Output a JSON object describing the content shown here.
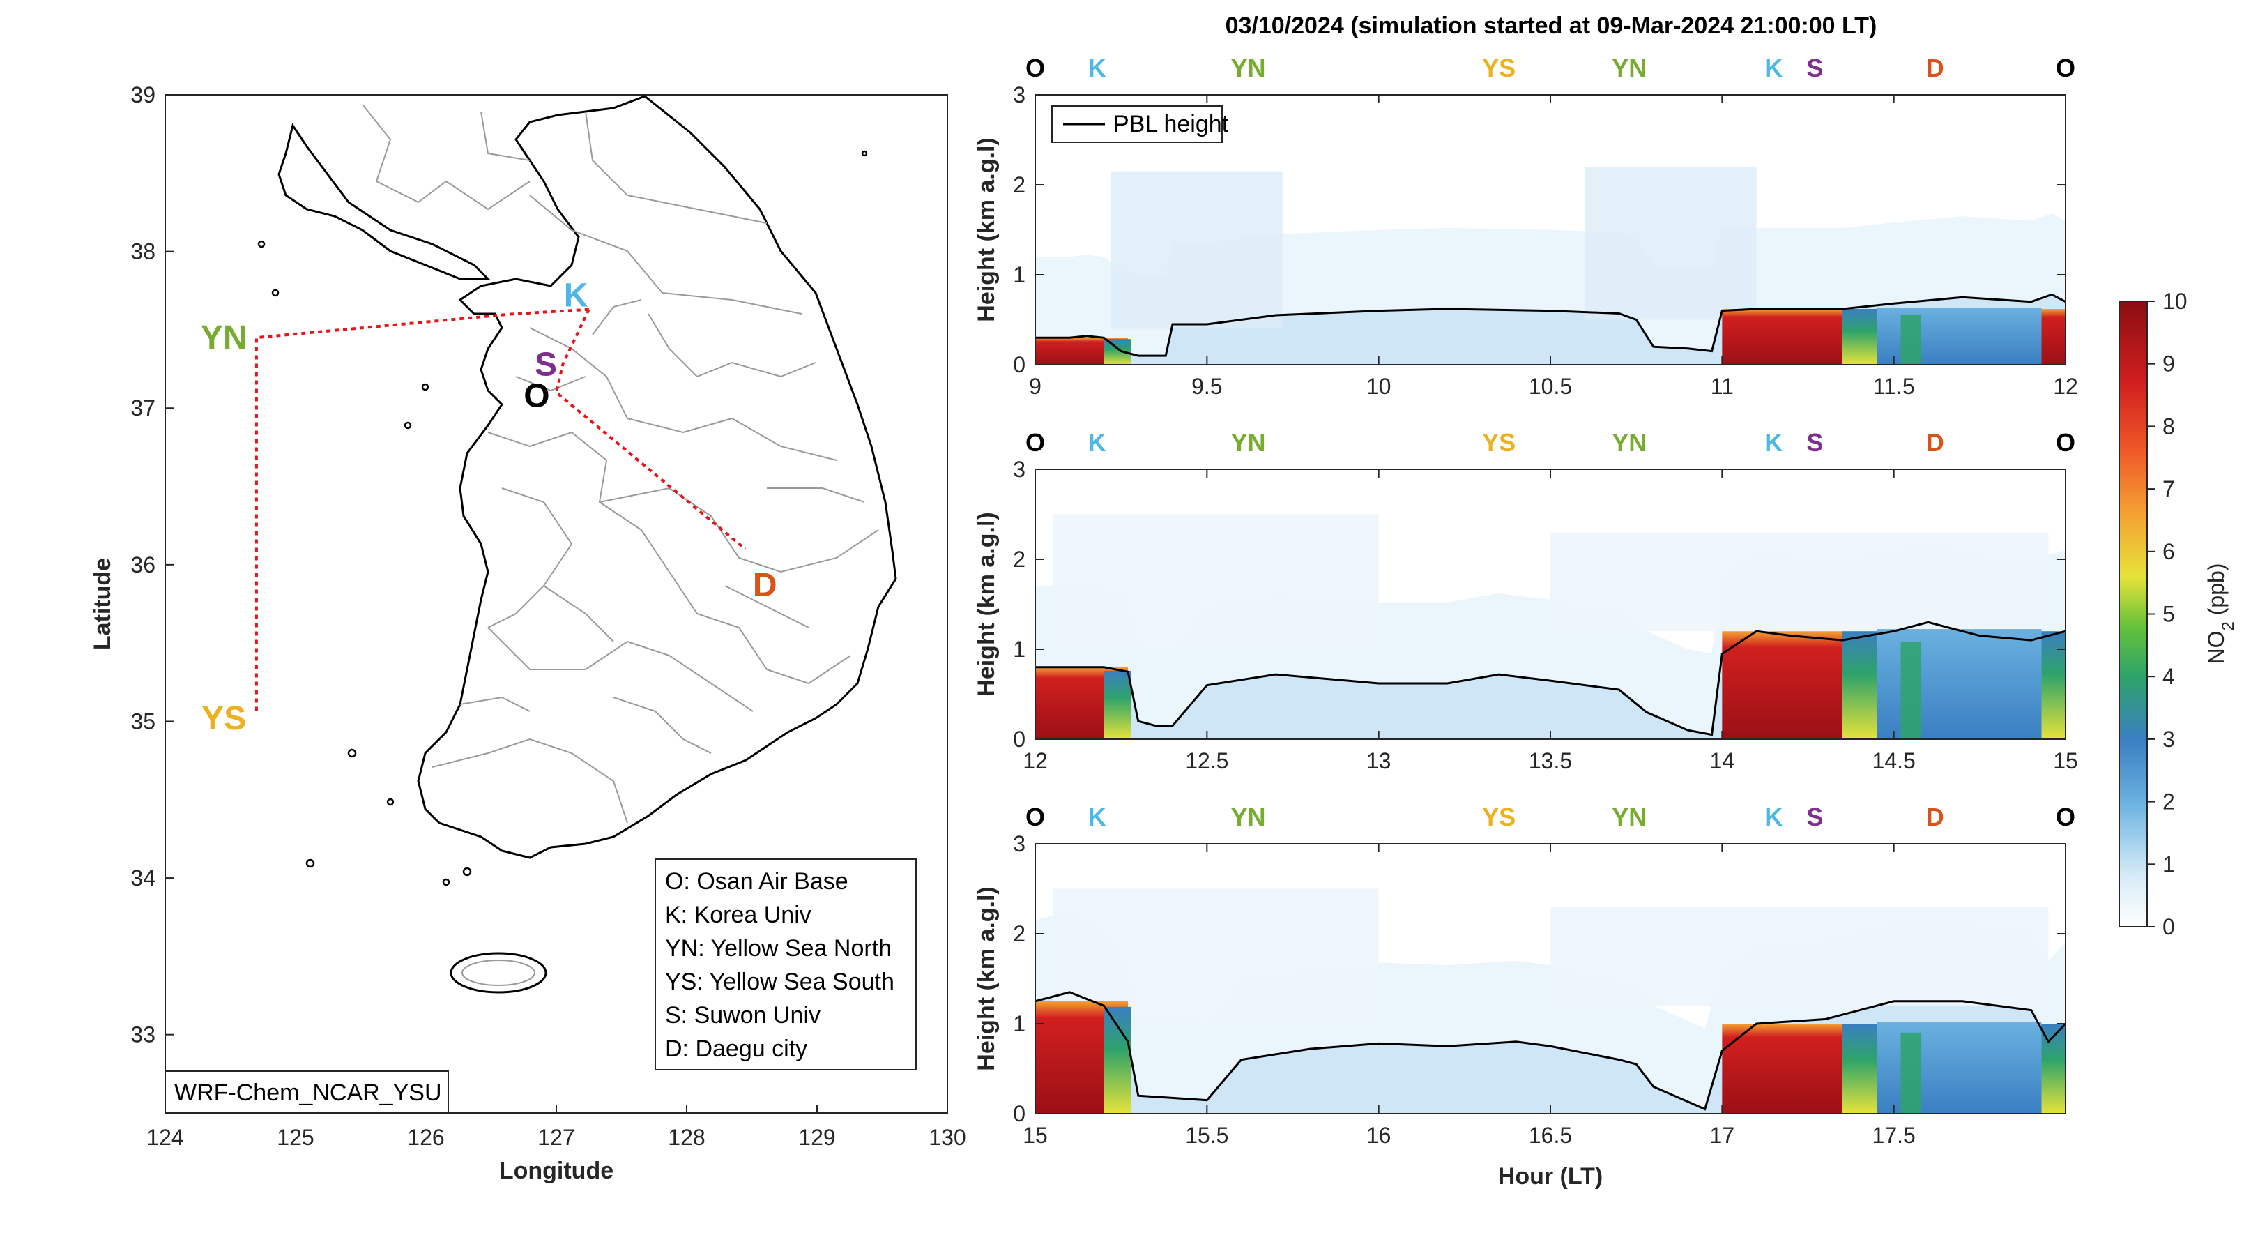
{
  "colors": {
    "O": "#000000",
    "K": "#4db8e8",
    "YN": "#77ac30",
    "YS": "#edb120",
    "S": "#7e2f8e",
    "D": "#d95319",
    "route": "#e8141b",
    "pbl": "#000000"
  },
  "map": {
    "xlabel": "Longitude",
    "ylabel": "Latitude",
    "xlim": [
      124,
      130
    ],
    "ylim": [
      32.5,
      39
    ],
    "xticks": [
      "124",
      "125",
      "126",
      "127",
      "128",
      "129",
      "130"
    ],
    "yticks": [
      "33",
      "34",
      "35",
      "36",
      "37",
      "38",
      "39"
    ],
    "model_label": "WRF-Chem_NCAR_YSU",
    "labels": [
      {
        "id": "K",
        "text": "K",
        "lon": 127.15,
        "lat": 37.72
      },
      {
        "id": "S",
        "text": "S",
        "lon": 126.92,
        "lat": 37.28
      },
      {
        "id": "O",
        "text": "O",
        "lon": 126.85,
        "lat": 37.08
      },
      {
        "id": "D",
        "text": "D",
        "lon": 128.6,
        "lat": 35.87
      },
      {
        "id": "YN",
        "text": "YN",
        "lon": 124.45,
        "lat": 37.45
      },
      {
        "id": "YS",
        "text": "YS",
        "lon": 124.45,
        "lat": 35.02
      }
    ],
    "route": [
      [
        127.25,
        37.63
      ],
      [
        126.65,
        37.6
      ],
      [
        124.7,
        37.45
      ],
      [
        124.7,
        35.05
      ]
    ],
    "route2": [
      [
        127.25,
        37.63
      ],
      [
        127.05,
        37.28
      ],
      [
        127.0,
        37.1
      ],
      [
        128.45,
        36.1
      ]
    ],
    "legend": [
      "O: Osan Air Base",
      "K: Korea Univ",
      "YN: Yellow Sea North",
      "YS: Yellow Sea South",
      "S: Suwon Univ",
      "D: Daegu city"
    ]
  },
  "colorbar": {
    "label": "NO2 (ppb)",
    "label_main": "NO",
    "label_sub": "2",
    "label_unit": " (ppb)",
    "ticks": [
      "0",
      "1",
      "2",
      "3",
      "4",
      "5",
      "6",
      "7",
      "8",
      "9",
      "10"
    ]
  },
  "chart_data": [
    {
      "type": "heatmap",
      "title": "03/10/2024 (simulation started at 09-Mar-2024 21:00:00 LT)",
      "xlim": [
        9,
        12
      ],
      "xticks": [
        "9",
        "9.5",
        "10",
        "10.5",
        "11",
        "11.5",
        "12"
      ],
      "ylabel": "Height (km a.g.l)",
      "ylim": [
        0,
        3
      ],
      "yticks": [
        "0",
        "1",
        "2",
        "3"
      ],
      "top_sites": [
        {
          "id": "O",
          "x": 9.0
        },
        {
          "id": "K",
          "x": 9.18
        },
        {
          "id": "YN",
          "x": 9.62
        },
        {
          "id": "YS",
          "x": 10.35
        },
        {
          "id": "YN",
          "x": 10.73
        },
        {
          "id": "K",
          "x": 11.15
        },
        {
          "id": "S",
          "x": 11.27
        },
        {
          "id": "D",
          "x": 11.62
        },
        {
          "id": "O",
          "x": 12.0
        }
      ],
      "series": [
        {
          "name": "PBL height",
          "x": [
            9.0,
            9.1,
            9.15,
            9.2,
            9.25,
            9.3,
            9.38,
            9.4,
            9.5,
            9.7,
            10.0,
            10.2,
            10.5,
            10.7,
            10.75,
            10.8,
            10.9,
            10.97,
            11.0,
            11.1,
            11.2,
            11.35,
            11.5,
            11.7,
            11.9,
            11.96,
            12.0
          ],
          "y": [
            0.3,
            0.3,
            0.32,
            0.3,
            0.15,
            0.1,
            0.1,
            0.45,
            0.45,
            0.55,
            0.6,
            0.62,
            0.6,
            0.57,
            0.5,
            0.2,
            0.18,
            0.15,
            0.6,
            0.62,
            0.62,
            0.62,
            0.68,
            0.75,
            0.7,
            0.78,
            0.7
          ]
        }
      ]
    },
    {
      "type": "heatmap",
      "xlim": [
        12,
        15
      ],
      "xticks": [
        "12",
        "12.5",
        "13",
        "13.5",
        "14",
        "14.5",
        "15"
      ],
      "ylabel": "Height (km a.g.l)",
      "ylim": [
        0,
        3
      ],
      "yticks": [
        "0",
        "1",
        "2",
        "3"
      ],
      "top_sites": [
        {
          "id": "O",
          "x": 12.0
        },
        {
          "id": "K",
          "x": 12.18
        },
        {
          "id": "YN",
          "x": 12.62
        },
        {
          "id": "YS",
          "x": 13.35
        },
        {
          "id": "YN",
          "x": 13.73
        },
        {
          "id": "K",
          "x": 14.15
        },
        {
          "id": "S",
          "x": 14.27
        },
        {
          "id": "D",
          "x": 14.62
        },
        {
          "id": "O",
          "x": 15.0
        }
      ],
      "series": [
        {
          "name": "PBL height",
          "x": [
            12.0,
            12.1,
            12.2,
            12.27,
            12.3,
            12.35,
            12.4,
            12.5,
            12.7,
            13.0,
            13.2,
            13.35,
            13.5,
            13.7,
            13.78,
            13.9,
            13.97,
            14.0,
            14.1,
            14.2,
            14.35,
            14.5,
            14.6,
            14.75,
            14.9,
            15.0
          ],
          "y": [
            0.8,
            0.8,
            0.8,
            0.75,
            0.2,
            0.15,
            0.15,
            0.6,
            0.72,
            0.62,
            0.62,
            0.72,
            0.65,
            0.55,
            0.3,
            0.1,
            0.05,
            0.95,
            1.2,
            1.15,
            1.1,
            1.2,
            1.3,
            1.15,
            1.1,
            1.2
          ]
        }
      ]
    },
    {
      "type": "heatmap",
      "xlim": [
        15,
        18
      ],
      "xticks": [
        "15",
        "15.5",
        "16",
        "16.5",
        "17",
        "17.5"
      ],
      "xlabel": "Hour (LT)",
      "ylabel": "Height (km a.g.l)",
      "ylim": [
        0,
        3
      ],
      "yticks": [
        "0",
        "1",
        "2",
        "3"
      ],
      "top_sites": [
        {
          "id": "O",
          "x": 15.0
        },
        {
          "id": "K",
          "x": 15.18
        },
        {
          "id": "YN",
          "x": 15.62
        },
        {
          "id": "YS",
          "x": 16.35
        },
        {
          "id": "YN",
          "x": 16.73
        },
        {
          "id": "K",
          "x": 17.15
        },
        {
          "id": "S",
          "x": 17.27
        },
        {
          "id": "D",
          "x": 17.62
        },
        {
          "id": "O",
          "x": 18.0
        }
      ],
      "series": [
        {
          "name": "PBL height",
          "x": [
            15.0,
            15.1,
            15.2,
            15.27,
            15.3,
            15.5,
            15.6,
            15.8,
            16.0,
            16.2,
            16.4,
            16.5,
            16.7,
            16.75,
            16.8,
            16.95,
            17.0,
            17.1,
            17.3,
            17.5,
            17.7,
            17.9,
            17.95,
            18.0
          ],
          "y": [
            1.25,
            1.35,
            1.2,
            0.8,
            0.2,
            0.15,
            0.6,
            0.72,
            0.78,
            0.75,
            0.8,
            0.75,
            0.6,
            0.55,
            0.3,
            0.05,
            0.7,
            1.0,
            1.05,
            1.25,
            1.25,
            1.15,
            0.8,
            1.0
          ]
        }
      ]
    }
  ]
}
